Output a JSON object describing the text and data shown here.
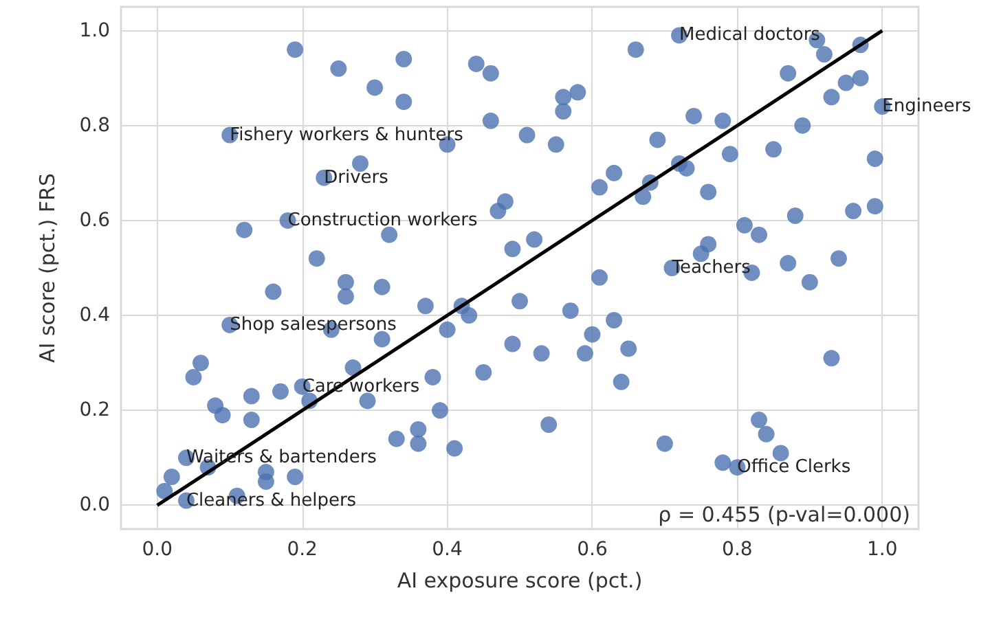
{
  "chart_data": {
    "type": "scatter",
    "xlabel": "AI exposure score (pct.)",
    "ylabel": "AI score (pct.) FRS",
    "xlim": [
      -0.05,
      1.05
    ],
    "ylim": [
      -0.05,
      1.05
    ],
    "xticks": [
      {
        "value": 0,
        "label": "0.0"
      },
      {
        "value": 0.2,
        "label": "0.2"
      },
      {
        "value": 0.4,
        "label": "0.4"
      },
      {
        "value": 0.6,
        "label": "0.6"
      },
      {
        "value": 0.8,
        "label": "0.8"
      },
      {
        "value": 1,
        "label": "1.0"
      }
    ],
    "yticks": [
      {
        "value": 0,
        "label": "0.0"
      },
      {
        "value": 0.2,
        "label": "0.2"
      },
      {
        "value": 0.4,
        "label": "0.4"
      },
      {
        "value": 0.6,
        "label": "0.6"
      },
      {
        "value": 0.8,
        "label": "0.8"
      },
      {
        "value": 1,
        "label": "1.0"
      }
    ],
    "grid": true,
    "marker": "circle",
    "series": [
      {
        "color": "#4c72b0",
        "x": [
          0.19,
          0.25,
          0.3,
          0.34,
          0.34,
          0.44,
          0.46,
          0.46,
          0.51,
          0.1,
          0.4,
          0.28,
          0.23,
          0.48,
          0.47,
          0.12,
          0.18,
          0.32,
          0.49,
          0.22,
          0.52,
          0.66,
          0.72,
          0.91,
          0.92,
          0.97,
          0.87,
          0.95,
          0.97,
          0.93,
          1.0,
          0.56,
          0.58,
          0.56,
          0.74,
          0.78,
          0.55,
          0.69,
          0.89,
          0.79,
          0.85,
          0.72,
          0.73,
          0.99,
          0.63,
          0.61,
          0.68,
          0.67,
          0.76,
          0.96,
          0.99,
          0.88,
          0.81,
          0.83,
          0.75,
          0.76,
          0.71,
          0.87,
          0.94,
          0.82,
          0.26,
          0.26,
          0.31,
          0.16,
          0.1,
          0.24,
          0.31,
          0.37,
          0.42,
          0.43,
          0.4,
          0.5,
          0.49,
          0.45,
          0.06,
          0.05,
          0.27,
          0.13,
          0.17,
          0.2,
          0.38,
          0.29,
          0.21,
          0.08,
          0.09,
          0.13,
          0.39,
          0.36,
          0.36,
          0.33,
          0.41,
          0.04,
          0.07,
          0.15,
          0.19,
          0.15,
          0.02,
          0.01,
          0.04,
          0.11,
          0.61,
          0.9,
          0.57,
          0.63,
          0.53,
          0.6,
          0.59,
          0.65,
          0.64,
          0.93,
          0.54,
          0.7,
          0.83,
          0.84,
          0.86,
          0.78,
          0.8
        ],
        "values": [
          0.96,
          0.92,
          0.88,
          0.94,
          0.85,
          0.93,
          0.91,
          0.81,
          0.78,
          0.78,
          0.76,
          0.72,
          0.69,
          0.64,
          0.62,
          0.58,
          0.6,
          0.57,
          0.54,
          0.52,
          0.56,
          0.96,
          0.99,
          0.98,
          0.95,
          0.97,
          0.91,
          0.89,
          0.9,
          0.86,
          0.84,
          0.86,
          0.87,
          0.83,
          0.82,
          0.81,
          0.76,
          0.77,
          0.8,
          0.74,
          0.75,
          0.72,
          0.71,
          0.73,
          0.7,
          0.67,
          0.68,
          0.65,
          0.66,
          0.62,
          0.63,
          0.61,
          0.59,
          0.57,
          0.53,
          0.55,
          0.5,
          0.51,
          0.52,
          0.49,
          0.47,
          0.44,
          0.46,
          0.45,
          0.38,
          0.37,
          0.35,
          0.42,
          0.42,
          0.4,
          0.37,
          0.43,
          0.34,
          0.28,
          0.3,
          0.27,
          0.29,
          0.23,
          0.24,
          0.25,
          0.27,
          0.22,
          0.22,
          0.21,
          0.19,
          0.18,
          0.2,
          0.16,
          0.13,
          0.14,
          0.12,
          0.1,
          0.08,
          0.07,
          0.06,
          0.05,
          0.06,
          0.03,
          0.01,
          0.02,
          0.48,
          0.47,
          0.41,
          0.39,
          0.32,
          0.36,
          0.32,
          0.33,
          0.26,
          0.31,
          0.17,
          0.13,
          0.18,
          0.15,
          0.11,
          0.09,
          0.08
        ]
      },
      {
        "type": "line",
        "color": "#000000",
        "marker": "none",
        "x": [
          0,
          1
        ],
        "values": [
          0,
          1
        ]
      }
    ],
    "annotations": [
      {
        "text": "Medical doctors",
        "x": 0.72,
        "y": 0.99
      },
      {
        "text": "Engineers",
        "x": 1.0,
        "y": 0.84
      },
      {
        "text": "Fishery workers & hunters",
        "x": 0.1,
        "y": 0.78
      },
      {
        "text": "Drivers",
        "x": 0.23,
        "y": 0.69
      },
      {
        "text": "Construction workers",
        "x": 0.18,
        "y": 0.6
      },
      {
        "text": "Teachers",
        "x": 0.71,
        "y": 0.5
      },
      {
        "text": "Shop salespersons",
        "x": 0.1,
        "y": 0.38
      },
      {
        "text": "Care workers",
        "x": 0.2,
        "y": 0.25
      },
      {
        "text": "Waiters & bartenders",
        "x": 0.04,
        "y": 0.1
      },
      {
        "text": "Office Clerks",
        "x": 0.8,
        "y": 0.08
      },
      {
        "text": "Cleaners & helpers",
        "x": 0.04,
        "y": 0.01
      },
      "ρ = 0.455 (p-val=0.000)"
    ]
  }
}
